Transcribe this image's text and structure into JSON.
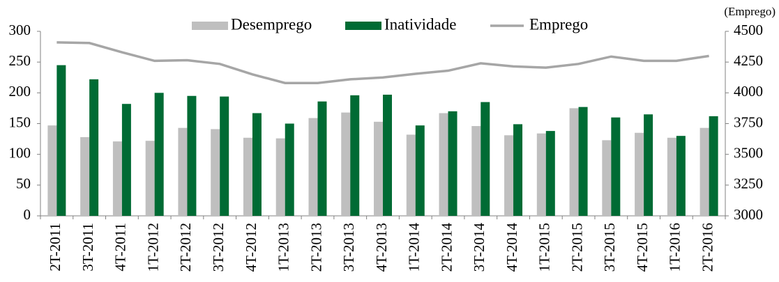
{
  "chart_data": {
    "type": "bar-line",
    "y2label": "(Emprego)",
    "categories": [
      "2T-2011",
      "3T-2011",
      "4T-2011",
      "1T-2012",
      "2T-2012",
      "3T-2012",
      "4T-2012",
      "1T-2013",
      "2T-2013",
      "3T-2013",
      "4T-2013",
      "1T-2014",
      "2T-2014",
      "3T-2014",
      "4T-2014",
      "1T-2015",
      "2T-2015",
      "3T-2015",
      "4T-2015",
      "1T-2016",
      "2T-2016"
    ],
    "series": [
      {
        "name": "Desemprego",
        "color": "#bfbfbf",
        "kind": "bar",
        "values": [
          147,
          128,
          121,
          122,
          143,
          141,
          127,
          126,
          159,
          168,
          153,
          132,
          167,
          146,
          131,
          134,
          175,
          123,
          135,
          127,
          143
        ]
      },
      {
        "name": "Inatividade",
        "color": "#006b34",
        "kind": "bar",
        "values": [
          245,
          222,
          182,
          200,
          195,
          194,
          167,
          150,
          186,
          196,
          197,
          147,
          170,
          185,
          149,
          138,
          177,
          160,
          165,
          130,
          162
        ]
      },
      {
        "name": "Emprego",
        "color": "#a6a6a6",
        "kind": "line",
        "axis": "y2",
        "values": [
          4410,
          4405,
          4330,
          4260,
          4265,
          4235,
          4150,
          4080,
          4080,
          4110,
          4125,
          4155,
          4180,
          4240,
          4215,
          4205,
          4235,
          4295,
          4260,
          4260,
          4300
        ]
      }
    ],
    "ylim": [
      0,
      300
    ],
    "yticks": [
      0,
      50,
      100,
      150,
      200,
      250,
      300
    ],
    "y2lim": [
      3000,
      4500
    ],
    "y2ticks": [
      3000,
      3250,
      3500,
      3750,
      4000,
      4250,
      4500
    ],
    "legend": "top"
  }
}
